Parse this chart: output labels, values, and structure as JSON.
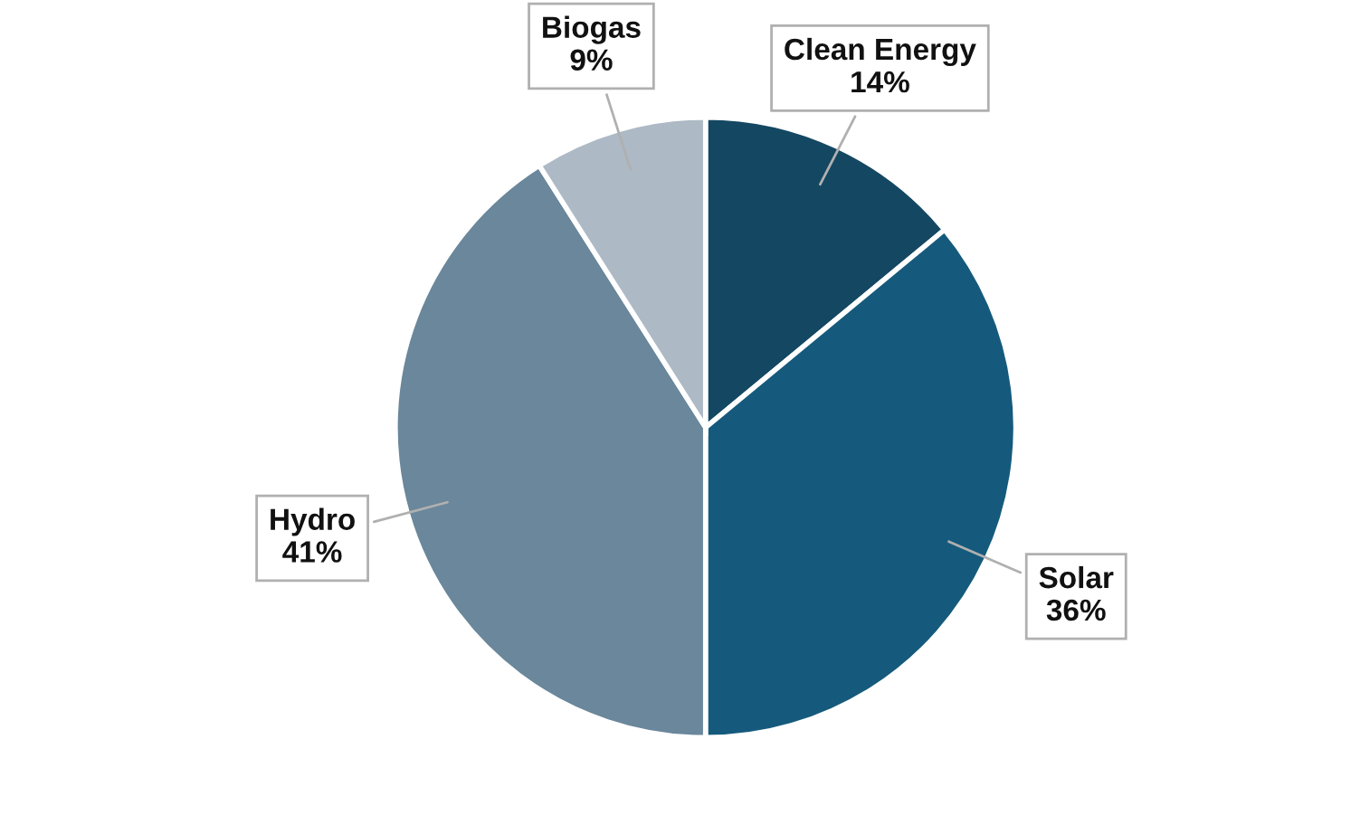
{
  "chart_data": {
    "type": "pie",
    "categories": [
      "Clean Energy",
      "Solar",
      "Hydro",
      "Biogas"
    ],
    "values": [
      14,
      36,
      41,
      9
    ],
    "colors": [
      "#144762",
      "#155a7c",
      "#6a879b",
      "#adb9c5"
    ],
    "value_labels": [
      "14%",
      "36%",
      "41%",
      "9%"
    ],
    "legend": false
  }
}
